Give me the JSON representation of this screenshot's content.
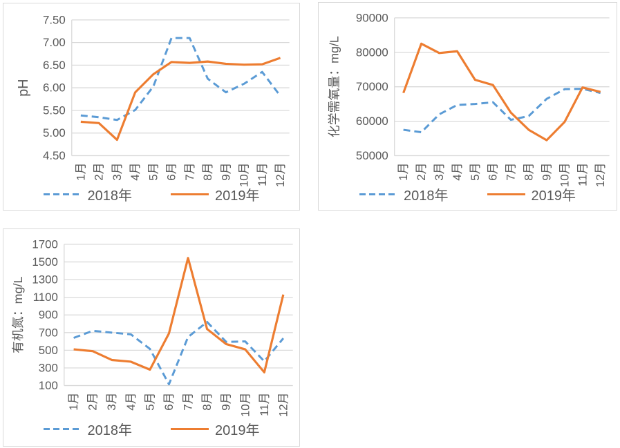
{
  "colors": {
    "series_2018": "#5B9BD5",
    "series_2019": "#ED7D31",
    "gridline": "#D9D9D9",
    "axis_line": "#D9D9D9",
    "panel_border": "#D9D9D9",
    "text": "#595959",
    "background": "#FFFFFF"
  },
  "legend": {
    "label_2018": "2018年",
    "label_2019": "2019年"
  },
  "chart_data": [
    {
      "id": "ph",
      "type": "line",
      "title": "",
      "xlabel": "",
      "ylabel": "pH",
      "categories": [
        "1月",
        "2月",
        "3月",
        "4月",
        "5月",
        "6月",
        "7月",
        "8月",
        "9月",
        "10月",
        "11月",
        "12月"
      ],
      "series": [
        {
          "name": "2018年",
          "color": "#5B9BD5",
          "style": "dashed",
          "values": [
            5.39,
            5.35,
            5.29,
            5.51,
            6.03,
            7.1,
            7.1,
            6.2,
            5.9,
            6.09,
            6.35,
            5.82
          ]
        },
        {
          "name": "2019年",
          "color": "#ED7D31",
          "style": "solid",
          "values": [
            5.25,
            5.22,
            4.85,
            5.9,
            6.3,
            6.57,
            6.55,
            6.58,
            6.53,
            6.51,
            6.52,
            6.66
          ]
        }
      ],
      "ylim": [
        4.5,
        7.5
      ],
      "ytick_step": 0.5,
      "ytick_labels": [
        "7.50",
        "7.00",
        "6.50",
        "6.00",
        "5.50",
        "5.00",
        "4.50"
      ],
      "grid": true,
      "legend_position": "bottom"
    },
    {
      "id": "cod",
      "type": "line",
      "title": "",
      "xlabel": "",
      "ylabel": "化学需氧量：mg/L",
      "categories": [
        "1月",
        "2月",
        "3月",
        "4月",
        "5月",
        "6月",
        "7月",
        "8月",
        "9月",
        "10月",
        "11月",
        "12月"
      ],
      "series": [
        {
          "name": "2018年",
          "color": "#5B9BD5",
          "style": "dashed",
          "values": [
            57500,
            56800,
            62000,
            64700,
            65000,
            65500,
            60400,
            61500,
            66500,
            69300,
            69400,
            68200
          ]
        },
        {
          "name": "2019年",
          "color": "#ED7D31",
          "style": "solid",
          "values": [
            68200,
            82500,
            79800,
            80300,
            72000,
            70500,
            62500,
            57500,
            54500,
            59800,
            69800,
            68500
          ]
        }
      ],
      "ylim": [
        50000,
        90000
      ],
      "ytick_step": 10000,
      "ytick_labels": [
        "90000",
        "80000",
        "70000",
        "60000",
        "50000"
      ],
      "grid": true,
      "legend_position": "bottom"
    },
    {
      "id": "orgn",
      "type": "line",
      "title": "",
      "xlabel": "",
      "ylabel": "有机氮：mg/L",
      "categories": [
        "1月",
        "2月",
        "3月",
        "4月",
        "5月",
        "6月",
        "7月",
        "8月",
        "9月",
        "10月",
        "11月",
        "12月"
      ],
      "series": [
        {
          "name": "2018年",
          "color": "#5B9BD5",
          "style": "dashed",
          "values": [
            640,
            720,
            700,
            680,
            515,
            115,
            650,
            820,
            595,
            600,
            375,
            635
          ]
        },
        {
          "name": "2019年",
          "color": "#ED7D31",
          "style": "solid",
          "values": [
            510,
            490,
            390,
            370,
            280,
            690,
            1545,
            740,
            570,
            510,
            250,
            1130
          ]
        }
      ],
      "ylim": [
        100,
        1700
      ],
      "ytick_step": 200,
      "ytick_labels": [
        "1700",
        "1500",
        "1300",
        "1100",
        "900",
        "700",
        "500",
        "300",
        "100"
      ],
      "grid": true,
      "legend_position": "bottom"
    }
  ]
}
